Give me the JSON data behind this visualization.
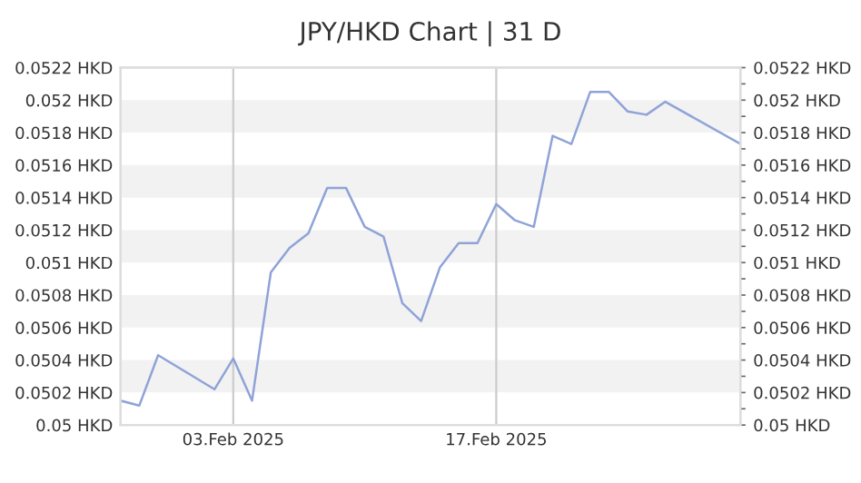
{
  "chart_data": {
    "type": "line",
    "title": "JPY/HKD Chart | 31 D",
    "x": [
      "2025-01-28",
      "2025-01-29",
      "2025-01-30",
      "2025-02-02",
      "2025-02-03",
      "2025-02-04",
      "2025-02-05",
      "2025-02-06",
      "2025-02-07",
      "2025-02-08",
      "2025-02-09",
      "2025-02-10",
      "2025-02-11",
      "2025-02-12",
      "2025-02-13",
      "2025-02-14",
      "2025-02-15",
      "2025-02-16",
      "2025-02-17",
      "2025-02-18",
      "2025-02-19",
      "2025-02-20",
      "2025-02-21",
      "2025-02-22",
      "2025-02-23",
      "2025-02-24",
      "2025-02-25",
      "2025-02-26",
      "2025-03-02"
    ],
    "series": [
      {
        "color": "#8fa3d8",
        "values": [
          0.05015,
          0.05012,
          0.05043,
          0.05022,
          0.05041,
          0.05015,
          0.05094,
          0.05109,
          0.05118,
          0.05146,
          0.05146,
          0.05122,
          0.05116,
          0.05075,
          0.05064,
          0.05097,
          0.05112,
          0.05112,
          0.05136,
          0.05126,
          0.05122,
          0.05178,
          0.05173,
          0.05205,
          0.05205,
          0.05193,
          0.05191,
          0.05199,
          0.05173
        ]
      }
    ],
    "xlim": [
      "2025-01-28",
      "2025-03-02"
    ],
    "xticks": [
      {
        "value": "2025-02-03",
        "label": "03.Feb 2025"
      },
      {
        "value": "2025-02-17",
        "label": "17.Feb 2025"
      }
    ],
    "ylim": [
      0.05,
      0.0522
    ],
    "yticks": [
      {
        "value": 0.05,
        "label": "0.05 HKD"
      },
      {
        "value": 0.0502,
        "label": "0.0502 HKD"
      },
      {
        "value": 0.0504,
        "label": "0.0504 HKD"
      },
      {
        "value": 0.0506,
        "label": "0.0506 HKD"
      },
      {
        "value": 0.0508,
        "label": "0.0508 HKD"
      },
      {
        "value": 0.051,
        "label": "0.051 HKD"
      },
      {
        "value": 0.0512,
        "label": "0.0512 HKD"
      },
      {
        "value": 0.0514,
        "label": "0.0514 HKD"
      },
      {
        "value": 0.0516,
        "label": "0.0516 HKD"
      },
      {
        "value": 0.0518,
        "label": "0.0518 HKD"
      },
      {
        "value": 0.052,
        "label": "0.052 HKD"
      },
      {
        "value": 0.0522,
        "label": "0.0522 HKD"
      }
    ],
    "y2lim": [
      0.05,
      0.0522
    ],
    "y2ticks": [
      {
        "value": 0.05,
        "label": "0.05 HKD"
      },
      {
        "value": 0.0501,
        "label": null
      },
      {
        "value": 0.0502,
        "label": "0.0502 HKD"
      },
      {
        "value": 0.0503,
        "label": null
      },
      {
        "value": 0.0504,
        "label": "0.0504 HKD"
      },
      {
        "value": 0.0505,
        "label": null
      },
      {
        "value": 0.0506,
        "label": "0.0506 HKD"
      },
      {
        "value": 0.0507,
        "label": null
      },
      {
        "value": 0.0508,
        "label": "0.0508 HKD"
      },
      {
        "value": 0.0509,
        "label": null
      },
      {
        "value": 0.051,
        "label": "0.051 HKD"
      },
      {
        "value": 0.0511,
        "label": null
      },
      {
        "value": 0.0512,
        "label": "0.0512 HKD"
      },
      {
        "value": 0.0513,
        "label": null
      },
      {
        "value": 0.0514,
        "label": "0.0514 HKD"
      },
      {
        "value": 0.0515,
        "label": null
      },
      {
        "value": 0.0516,
        "label": "0.0516 HKD"
      },
      {
        "value": 0.0517,
        "label": null
      },
      {
        "value": 0.0518,
        "label": "0.0518 HKD"
      },
      {
        "value": 0.0519,
        "label": null
      },
      {
        "value": 0.052,
        "label": "0.052 HKD"
      },
      {
        "value": 0.0521,
        "label": null
      },
      {
        "value": 0.0522,
        "label": "0.0522 HKD"
      }
    ],
    "bands": [
      {
        "axis": "y",
        "from": 0.0502,
        "to": 0.0504,
        "color": "#f2f2f2"
      },
      {
        "axis": "y",
        "from": 0.0506,
        "to": 0.0508,
        "color": "#f2f2f2"
      },
      {
        "axis": "y",
        "from": 0.051,
        "to": 0.0512,
        "color": "#f2f2f2"
      },
      {
        "axis": "y",
        "from": 0.0514,
        "to": 0.0516,
        "color": "#f2f2f2"
      },
      {
        "axis": "y",
        "from": 0.0518,
        "to": 0.052,
        "color": "#f2f2f2"
      }
    ],
    "grid": "x",
    "marker": "none",
    "line_style": "solid"
  }
}
